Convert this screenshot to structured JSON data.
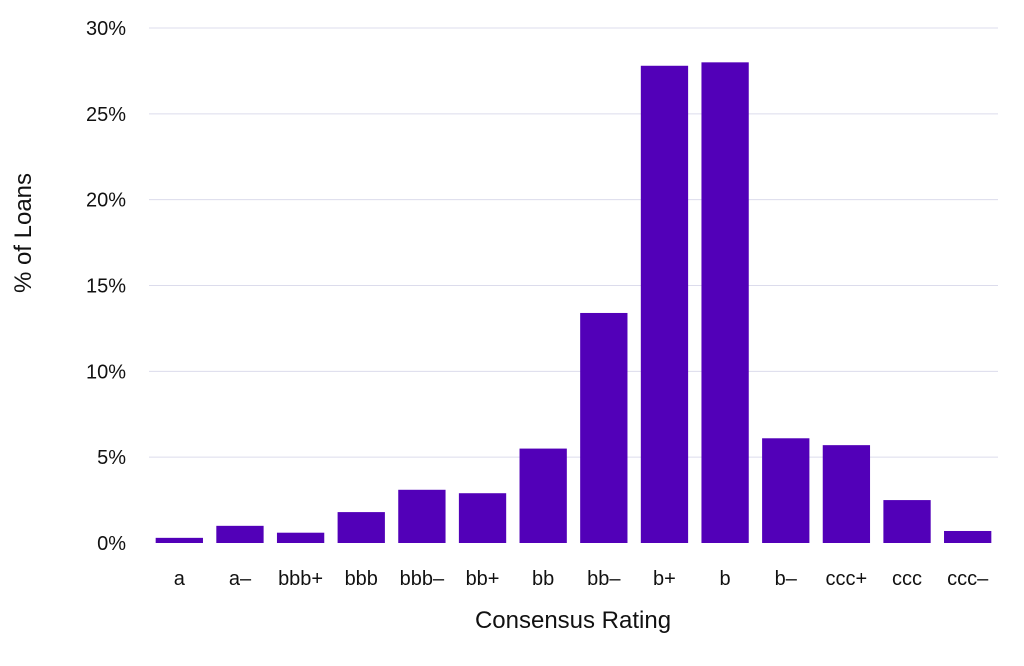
{
  "chart_data": {
    "type": "bar",
    "title": "",
    "xlabel": "Consensus Rating",
    "ylabel": "% of Loans",
    "categories": [
      "a",
      "a–",
      "bbb+",
      "bbb",
      "bbb–",
      "bb+",
      "bb",
      "bb–",
      "b+",
      "b",
      "b–",
      "ccc+",
      "ccc",
      "ccc–"
    ],
    "values": [
      0.3,
      1.0,
      0.6,
      1.8,
      3.1,
      2.9,
      5.5,
      13.4,
      27.8,
      28.0,
      6.1,
      5.7,
      2.5,
      0.7
    ],
    "ylim": [
      0,
      30
    ],
    "yticks": [
      0,
      5,
      10,
      15,
      20,
      25,
      30
    ],
    "ytick_labels": [
      "0%",
      "5%",
      "10%",
      "15%",
      "20%",
      "25%",
      "30%"
    ],
    "grid": true,
    "legend": "none",
    "bar_color": "#5200b8",
    "grid_color": "#dcdcec"
  }
}
